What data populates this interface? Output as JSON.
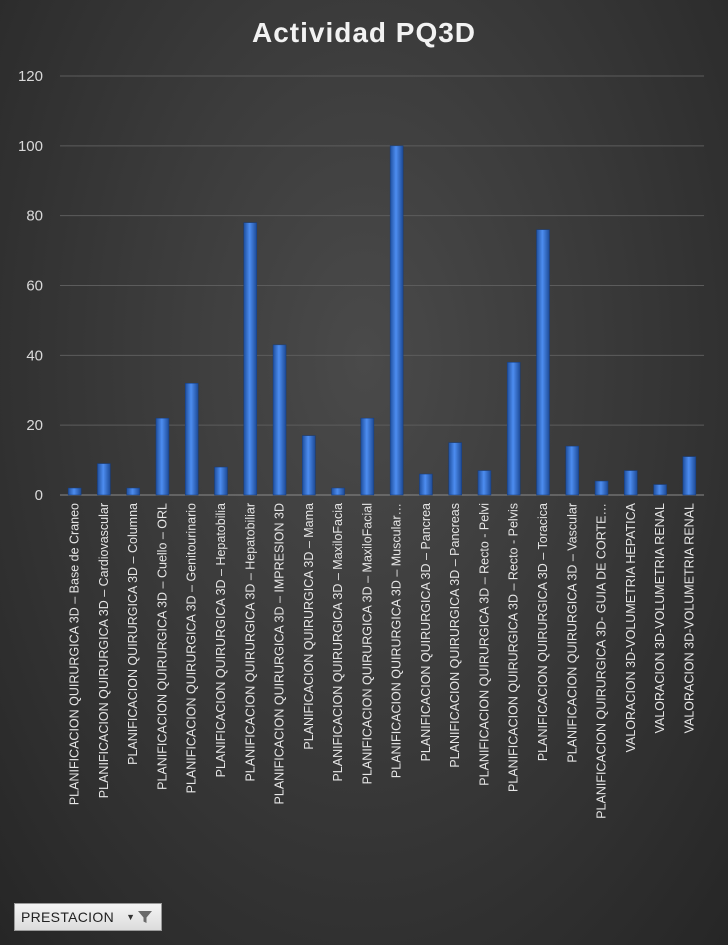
{
  "chart_data": {
    "type": "bar",
    "title": "Actividad PQ3D",
    "xlabel": "",
    "ylabel": "",
    "ylim": [
      0,
      120
    ],
    "yticks": [
      0,
      20,
      40,
      60,
      80,
      100,
      120
    ],
    "grid": true,
    "legend": "none",
    "bar_color": "#2e6fd6",
    "categories": [
      "PLANIFICACION QUIRURGICA 3D – Base de Craneo",
      "PLANIFICACION QUIRURGICA 3D – Cardiovascular",
      "PLANIFICACION QUIRURGICA 3D – Columna",
      "PLANIFICACION QUIRURGICA 3D – Cuello – ORL",
      "PLANIFICACION QUIRURGICA 3D – Genitourinario",
      "PLANIFICACION QUIRURGICA 3D – Hepatobilia",
      "PLANIFICACION QUIRURGICA 3D – Hepatobiliar",
      "PLANIFICACION QUIRURGICA 3D – IMPRESION 3D",
      "PLANIFICACION QUIRURGICA 3D – Mama",
      "PLANIFICACION QUIRURGICA 3D – MaxiloFacia",
      "PLANIFICACION QUIRURGICA 3D – MaxiloFacial",
      "PLANIFICACION QUIRURGICA 3D – Muscular…",
      "PLANIFICACION QUIRURGICA 3D – Pancrea",
      "PLANIFICACION QUIRURGICA 3D – Pancreas",
      "PLANIFICACION QUIRURGICA 3D – Recto - Pelvi",
      "PLANIFICACION QUIRURGICA 3D – Recto - Pelvis",
      "PLANIFICACION QUIRURGICA 3D – Toracica",
      "PLANIFICACION QUIRURGICA 3D – Vascular",
      "PLANIFICACION QUIRURGICA 3D- GUIA DE CORTE…",
      "VALORACION 3D-VOLUMETRIA HEPATICA",
      "VALORACION 3D-VOLUMETRIA RENAL",
      "VALORACION 3D-VOLUMETRIA RENAL"
    ],
    "values": [
      2,
      9,
      2,
      22,
      32,
      8,
      78,
      43,
      17,
      2,
      22,
      100,
      6,
      15,
      7,
      38,
      76,
      14,
      4,
      7,
      3,
      11
    ]
  },
  "filter": {
    "label": "PRESTACION",
    "dropdown_glyph": "▼",
    "icon": "funnel-icon"
  }
}
